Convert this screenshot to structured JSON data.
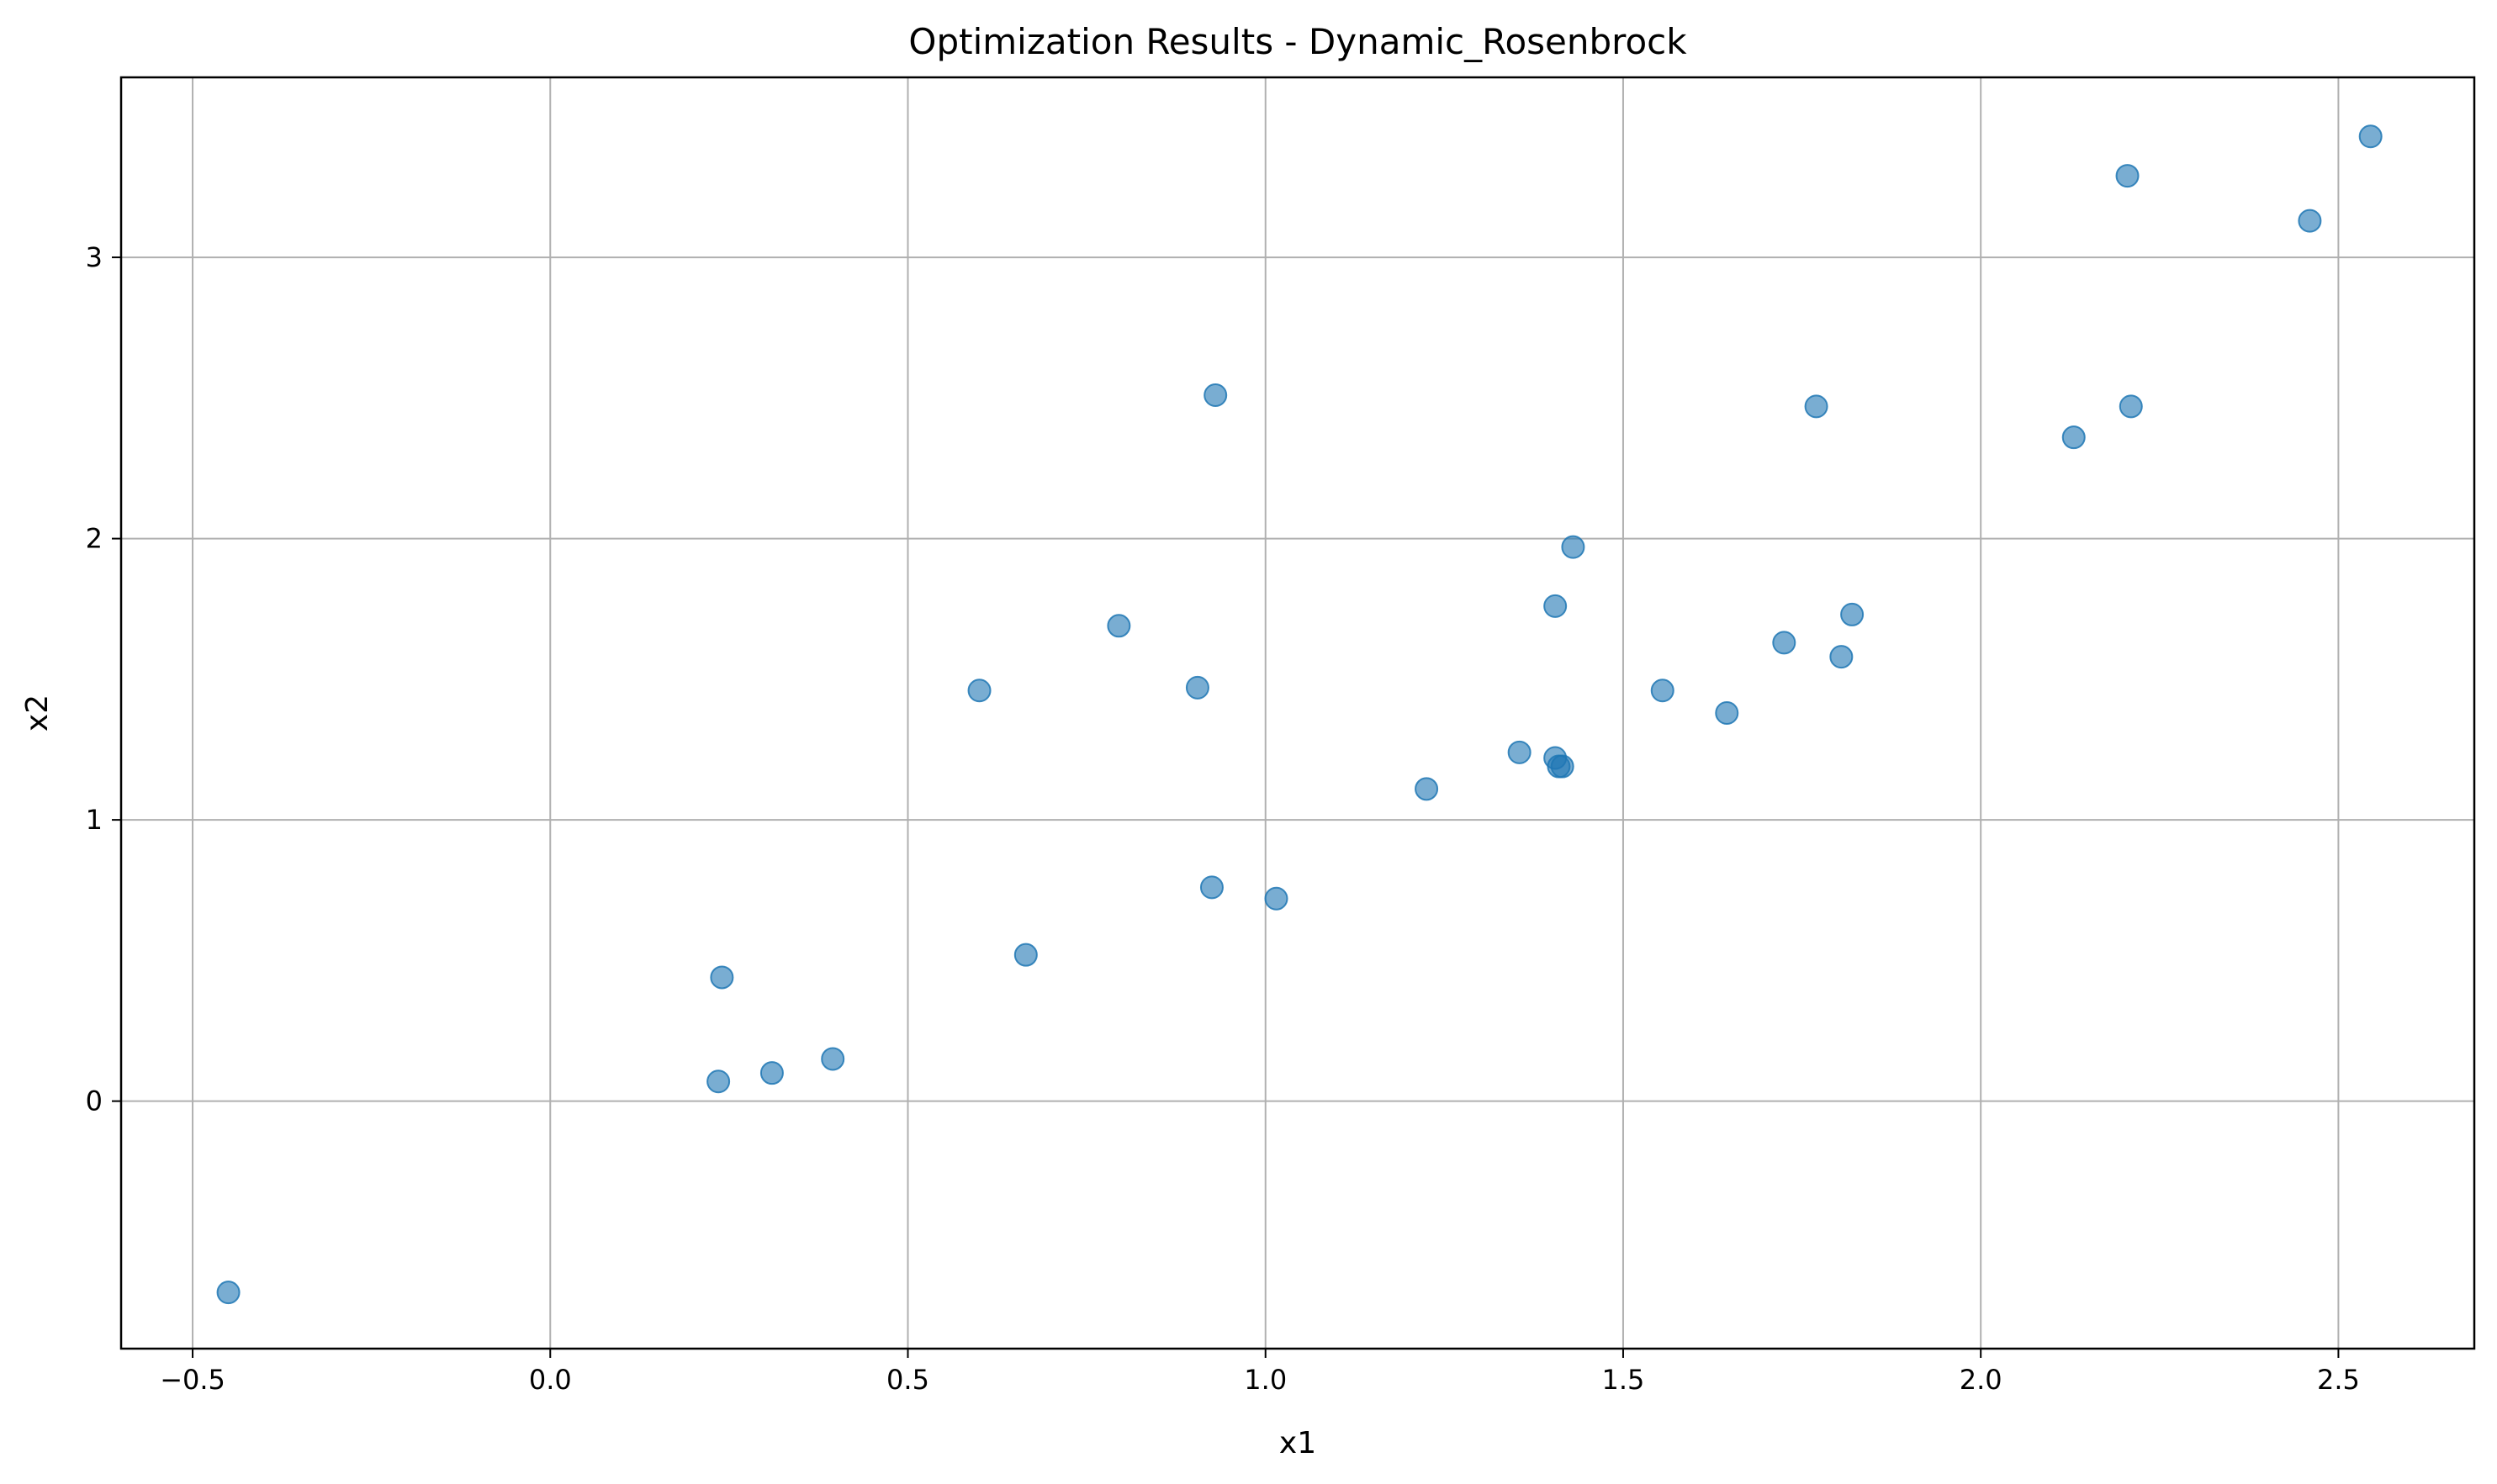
{
  "chart_data": {
    "type": "scatter",
    "title": "Optimization Results - Dynamic_Rosenbrock",
    "xlabel": "x1",
    "ylabel": "x2",
    "xlim": [
      -0.6,
      2.69
    ],
    "ylim": [
      -0.88,
      3.64
    ],
    "xticks": [
      -0.5,
      0.0,
      0.5,
      1.0,
      1.5,
      2.0,
      2.5
    ],
    "xtick_labels": [
      "−0.5",
      "0.0",
      "0.5",
      "1.0",
      "1.5",
      "2.0",
      "2.5"
    ],
    "yticks": [
      0,
      1,
      2,
      3
    ],
    "ytick_labels": [
      "0",
      "1",
      "2",
      "3"
    ],
    "grid": true,
    "marker_color": "#1f77b4",
    "marker_alpha": 0.6,
    "points": [
      {
        "x": -0.45,
        "y": -0.68
      },
      {
        "x": 0.235,
        "y": 0.07
      },
      {
        "x": 0.24,
        "y": 0.44
      },
      {
        "x": 0.31,
        "y": 0.1
      },
      {
        "x": 0.395,
        "y": 0.15
      },
      {
        "x": 0.6,
        "y": 1.46
      },
      {
        "x": 0.665,
        "y": 0.52
      },
      {
        "x": 0.795,
        "y": 1.69
      },
      {
        "x": 0.905,
        "y": 1.47
      },
      {
        "x": 0.925,
        "y": 0.76
      },
      {
        "x": 0.93,
        "y": 2.51
      },
      {
        "x": 1.015,
        "y": 0.72
      },
      {
        "x": 1.225,
        "y": 1.11
      },
      {
        "x": 1.355,
        "y": 1.24
      },
      {
        "x": 1.405,
        "y": 1.76
      },
      {
        "x": 1.405,
        "y": 1.22
      },
      {
        "x": 1.41,
        "y": 1.19
      },
      {
        "x": 1.415,
        "y": 1.19
      },
      {
        "x": 1.43,
        "y": 1.97
      },
      {
        "x": 1.555,
        "y": 1.46
      },
      {
        "x": 1.645,
        "y": 1.38
      },
      {
        "x": 1.725,
        "y": 1.63
      },
      {
        "x": 1.77,
        "y": 2.47
      },
      {
        "x": 1.805,
        "y": 1.58
      },
      {
        "x": 1.82,
        "y": 1.73
      },
      {
        "x": 2.13,
        "y": 2.36
      },
      {
        "x": 2.205,
        "y": 3.29
      },
      {
        "x": 2.21,
        "y": 2.47
      },
      {
        "x": 2.46,
        "y": 3.13
      },
      {
        "x": 2.545,
        "y": 3.43
      }
    ]
  }
}
